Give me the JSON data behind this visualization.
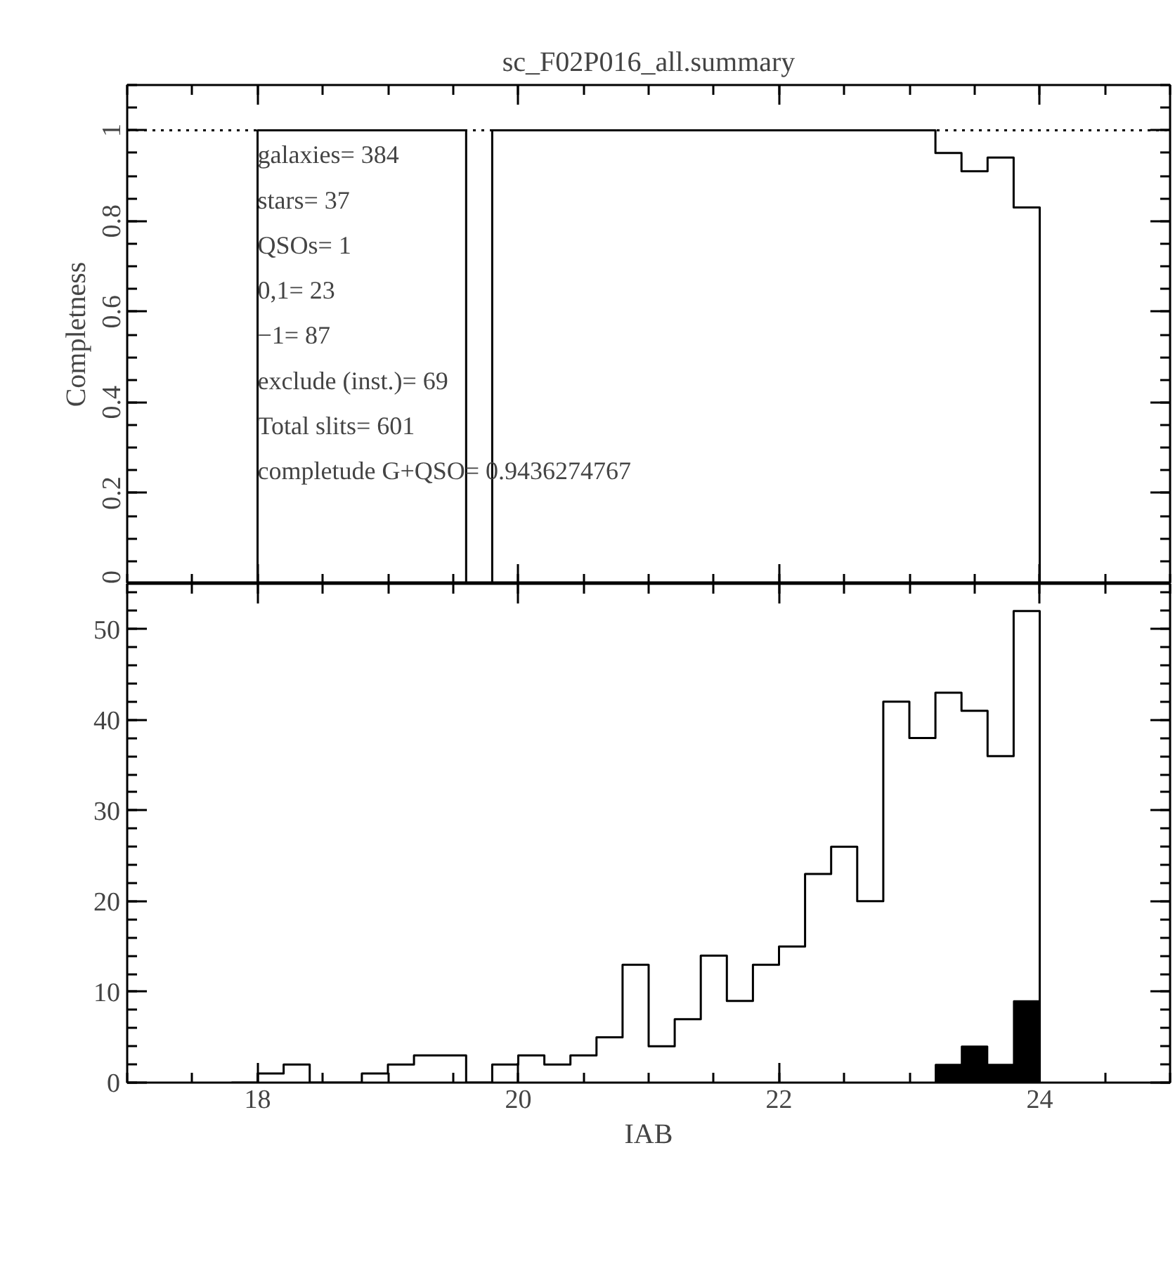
{
  "chart_data": [
    {
      "type": "step",
      "title": "sc_F02P016_all.summary",
      "ylabel": "Completness",
      "x": [
        17.8,
        18.0,
        18.2,
        18.4,
        18.6,
        18.8,
        19.0,
        19.2,
        19.4,
        19.6,
        19.8,
        20.0,
        20.2,
        20.4,
        20.6,
        20.8,
        21.0,
        21.2,
        21.4,
        21.6,
        21.8,
        22.0,
        22.2,
        22.4,
        22.6,
        22.8,
        23.0,
        23.2,
        23.4,
        23.6,
        23.8,
        24.0
      ],
      "values": [
        0,
        1,
        1,
        1,
        1,
        1,
        1,
        1,
        1,
        0,
        1,
        1,
        1,
        1,
        1,
        1,
        1,
        1,
        1,
        1,
        1,
        1,
        1,
        1,
        1,
        1,
        1,
        0.95,
        0.91,
        0.94,
        0.83,
        0
      ],
      "color": "#000000",
      "xlim": [
        17,
        25
      ],
      "ylim": [
        0,
        1.1
      ],
      "xticks": [
        {
          "value": 18,
          "label": null
        },
        {
          "value": 20,
          "label": null
        },
        {
          "value": 22,
          "label": null
        },
        {
          "value": 24,
          "label": null
        }
      ],
      "yticks": [
        0,
        0.2,
        0.4,
        0.6,
        0.8,
        1
      ],
      "tick_labels": "y",
      "ref_lines": [
        {
          "axis": "y",
          "value": 1,
          "label": null,
          "line_style": "dotted",
          "color": "#000000"
        }
      ],
      "annotations": [
        "galaxies= 384",
        "stars= 37",
        "QSOs= 1",
        "0,1= 23",
        "−1= 87",
        "exclude (inst.)= 69",
        "Total slits= 601",
        "completude G+QSO= 0.9436274767"
      ],
      "grid": false
    },
    {
      "type": "histogram",
      "xlabel": "IAB",
      "bins": [
        18.0,
        18.2,
        18.4,
        18.6,
        18.8,
        19.0,
        19.2,
        19.4,
        19.6,
        19.8,
        20.0,
        20.2,
        20.4,
        20.6,
        20.8,
        21.0,
        21.2,
        21.4,
        21.6,
        21.8,
        22.0,
        22.2,
        22.4,
        22.6,
        22.8,
        23.0,
        23.2,
        23.4,
        23.6,
        23.8,
        24.0
      ],
      "series": [
        {
          "type": "step",
          "color": "#000000",
          "x": [
            17.8,
            18.0,
            18.2,
            18.4,
            18.6,
            18.8,
            19.0,
            19.2,
            19.4,
            19.6,
            19.8,
            20.0,
            20.2,
            20.4,
            20.6,
            20.8,
            21.0,
            21.2,
            21.4,
            21.6,
            21.8,
            22.0,
            22.2,
            22.4,
            22.6,
            22.8,
            23.0,
            23.2,
            23.4,
            23.6,
            23.8,
            24.0
          ],
          "values": [
            0,
            1,
            2,
            0,
            0,
            1,
            2,
            3,
            3,
            0,
            2,
            3,
            2,
            3,
            5,
            13,
            4,
            7,
            14,
            9,
            13,
            15,
            23,
            26,
            20,
            42,
            38,
            43,
            41,
            36,
            52,
            0
          ]
        },
        {
          "type": "histogram",
          "color": "#000000",
          "values": [
            0,
            0,
            0,
            0,
            0,
            0,
            0,
            0,
            0,
            0,
            0,
            0,
            0,
            0,
            0,
            0,
            0,
            0,
            0,
            0,
            0,
            0,
            0,
            0,
            0,
            0,
            2,
            4,
            2,
            9
          ]
        }
      ],
      "xlim": [
        17,
        25
      ],
      "ylim": [
        0,
        55
      ],
      "xticks": [
        18,
        20,
        22,
        24
      ],
      "yticks": [
        0,
        10,
        20,
        30,
        40,
        50
      ],
      "grid": false
    }
  ]
}
